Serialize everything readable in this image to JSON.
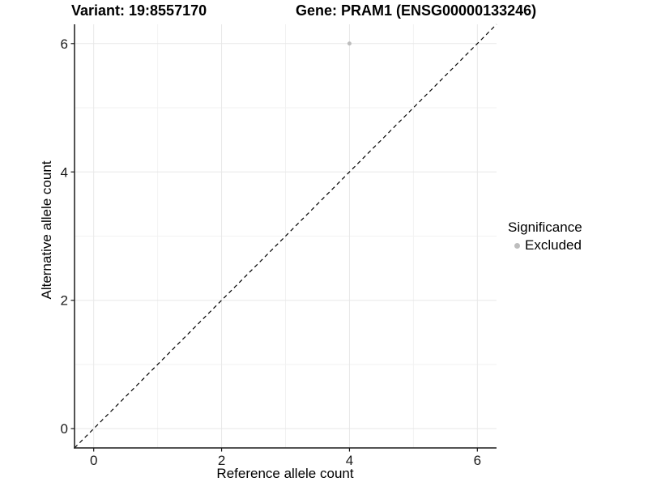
{
  "chart_data": {
    "type": "scatter",
    "title_variant": "Variant: 19:8557170",
    "title_gene": "Gene: PRAM1 (ENSG00000133246)",
    "xlabel": "Reference allele count",
    "ylabel": "Alternative allele count",
    "xlim": [
      -0.3,
      6.3
    ],
    "ylim": [
      -0.3,
      6.3
    ],
    "xticks": [
      0,
      2,
      4,
      6
    ],
    "yticks": [
      0,
      2,
      4,
      6
    ],
    "xgrid_minor": [
      1,
      3,
      5
    ],
    "ygrid_minor": [
      1,
      3,
      5
    ],
    "grid": true,
    "reference_line": {
      "kind": "identity",
      "x1": -0.3,
      "y1": -0.3,
      "x2": 6.3,
      "y2": 6.3,
      "dashed": true,
      "color": "#000000"
    },
    "series": [
      {
        "name": "Excluded",
        "color": "#bdbdbd",
        "points": [
          {
            "x": 4,
            "y": 6
          }
        ]
      }
    ],
    "legend": {
      "title": "Significance",
      "position": "right",
      "items": [
        {
          "label": "Excluded",
          "color": "#bdbdbd",
          "marker": "circle-icon"
        }
      ]
    }
  },
  "style": {
    "background": "#ffffff",
    "axis_color": "#1a1a1a",
    "tick_label_color": "#1a1a1a",
    "grid_major_color": "#e8e8e8",
    "grid_minor_color": "#f2f2f2",
    "text_color": "#000000",
    "point_radius": 2.5,
    "tick_length": 4.5,
    "tick_label_font_size": 17
  }
}
